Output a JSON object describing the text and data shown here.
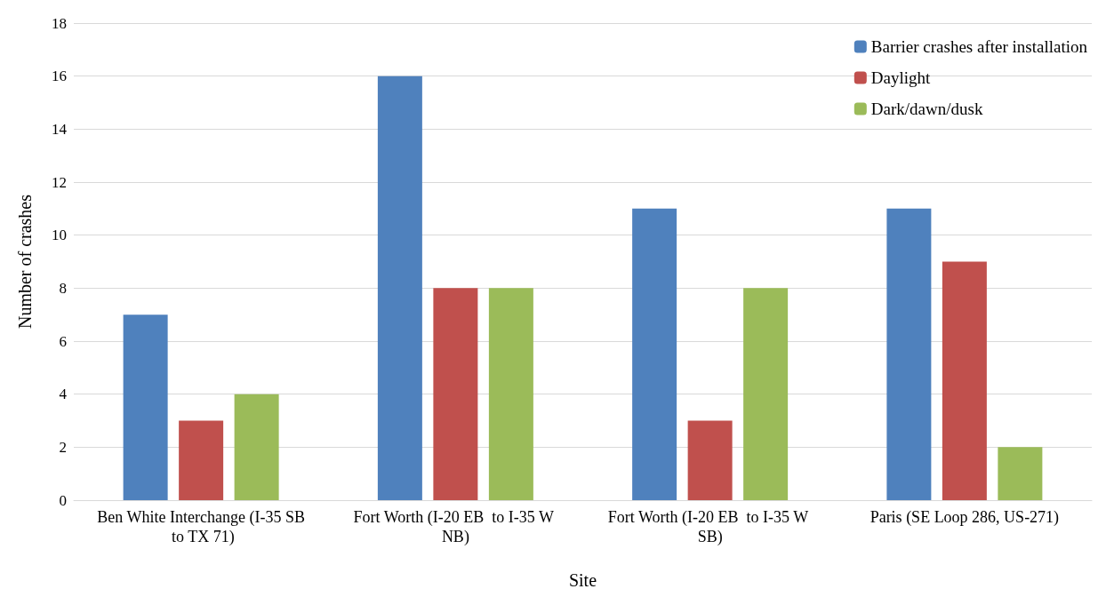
{
  "chart_data": {
    "type": "bar",
    "xlabel": "Site",
    "ylabel": "Number of crashes",
    "categories": [
      "Ben White Interchange (I-35 SB to TX 71)",
      "Fort Worth (I-20 EB  to I-35 W NB)",
      "Fort Worth (I-20 EB  to I-35 W SB)",
      "Paris (SE Loop 286, US-271)"
    ],
    "series": [
      {
        "name": "Barrier crashes after installation",
        "color": "#4f81bd",
        "values": [
          7,
          16,
          11,
          11
        ]
      },
      {
        "name": "Daylight",
        "color": "#c0504d",
        "values": [
          3,
          8,
          3,
          9
        ]
      },
      {
        "name": "Dark/dawn/dusk",
        "color": "#9bbb59",
        "values": [
          4,
          8,
          8,
          2
        ]
      }
    ],
    "ylim": [
      0,
      18
    ],
    "yticks": [
      0,
      2,
      4,
      6,
      8,
      10,
      12,
      14,
      16,
      18
    ],
    "grid": "y",
    "legend": "top right"
  }
}
